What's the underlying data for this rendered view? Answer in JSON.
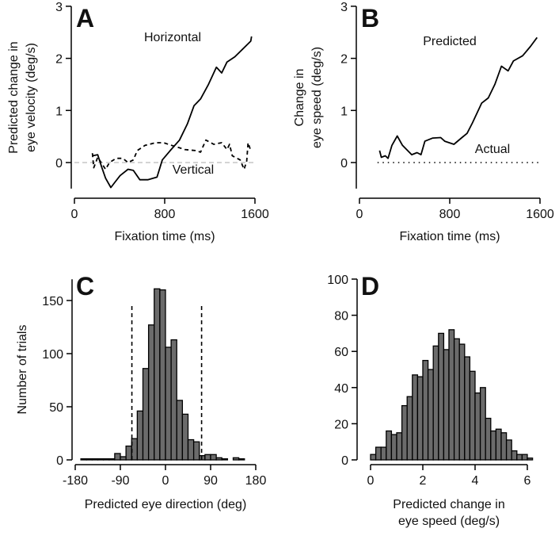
{
  "colors": {
    "bar_fill": "#6b6b6b",
    "line": "#000000",
    "zero_line": "#bbbbbb"
  },
  "chart_data": [
    {
      "panel": "A",
      "type": "line",
      "xlabel": "Fixation time (ms)",
      "ylabel": [
        "Predicted change in",
        "eye velocity (deg/s)"
      ],
      "xlim": [
        0,
        1600
      ],
      "ylim": [
        -0.5,
        3
      ],
      "xticks": [
        "0",
        "800",
        "1600"
      ],
      "yticks": [
        "0",
        "1",
        "2",
        "3"
      ],
      "zero_line": true,
      "series": [
        {
          "name": "Horizontal",
          "style": "solid",
          "x": [
            159,
            206,
            241,
            276,
            323,
            358,
            405,
            475,
            522,
            580,
            650,
            732,
            779,
            849,
            931,
            1001,
            1060,
            1118,
            1188,
            1258,
            1305,
            1352,
            1422,
            1492,
            1563,
            1570
          ],
          "y": [
            0.13,
            0.15,
            -0.08,
            -0.3,
            -0.48,
            -0.38,
            -0.25,
            -0.13,
            -0.15,
            -0.33,
            -0.33,
            -0.28,
            0.05,
            0.23,
            0.43,
            0.74,
            1.09,
            1.22,
            1.5,
            1.83,
            1.72,
            1.93,
            2.03,
            2.18,
            2.33,
            2.42
          ]
        },
        {
          "name": "Vertical",
          "style": "dashed",
          "x": [
            159,
            171,
            206,
            276,
            311,
            370,
            428,
            475,
            522,
            557,
            627,
            720,
            791,
            861,
            908,
            978,
            1072,
            1118,
            1165,
            1235,
            1305,
            1352,
            1375,
            1399,
            1469,
            1504,
            1527,
            1539,
            1563
          ],
          "y": [
            0.18,
            -0.1,
            0.1,
            -0.13,
            0,
            0.08,
            0.08,
            0,
            0.05,
            0.23,
            0.33,
            0.38,
            0.38,
            0.33,
            0.3,
            0.25,
            0.23,
            0.2,
            0.43,
            0.35,
            0.38,
            0.25,
            0.35,
            0.13,
            0.05,
            -0.13,
            0.03,
            0.38,
            0.23
          ]
        }
      ]
    },
    {
      "panel": "B",
      "type": "line",
      "xlabel": "Fixation time (ms)",
      "ylabel": [
        "Change in",
        "eye speed  (deg/s)"
      ],
      "xlim": [
        0,
        1600
      ],
      "ylim": [
        -0.5,
        3
      ],
      "xticks": [
        "0",
        "800",
        "1600"
      ],
      "yticks": [
        "0",
        "1",
        "2",
        "3"
      ],
      "series": [
        {
          "name": "Predicted",
          "style": "solid",
          "x": [
            178,
            194,
            229,
            253,
            288,
            335,
            381,
            463,
            510,
            545,
            580,
            650,
            720,
            756,
            837,
            908,
            954,
            1001,
            1083,
            1142,
            1200,
            1258,
            1317,
            1364,
            1446,
            1516,
            1574
          ],
          "y": [
            0.23,
            0.1,
            0.13,
            0.08,
            0.33,
            0.51,
            0.33,
            0.15,
            0.19,
            0.15,
            0.41,
            0.47,
            0.48,
            0.41,
            0.35,
            0.48,
            0.56,
            0.76,
            1.14,
            1.24,
            1.5,
            1.85,
            1.76,
            1.95,
            2.05,
            2.23,
            2.4
          ]
        },
        {
          "name": "Actual",
          "style": "dotted",
          "x": [
            160,
            1600
          ],
          "y": [
            0,
            0
          ]
        }
      ]
    },
    {
      "panel": "C",
      "type": "bar",
      "xlabel": "Predicted eye direction (deg)",
      "ylabel": [
        "Number of trials"
      ],
      "xlim": [
        -180,
        180
      ],
      "ylim": [
        0,
        170
      ],
      "xticks": [
        "-180",
        "-90",
        "0",
        "90",
        "180"
      ],
      "yticks": [
        "0",
        "50",
        "100",
        "150"
      ],
      "bin_start": -180,
      "bin_width": 11.25,
      "values": [
        0,
        1,
        1,
        1,
        1,
        1,
        1,
        6,
        3,
        13,
        20,
        46,
        86,
        127,
        161,
        160,
        106,
        113,
        56,
        43,
        19,
        17,
        4,
        5,
        5,
        2,
        1,
        0,
        2,
        1,
        0,
        0
      ],
      "reference_lines": [
        -67,
        72
      ]
    },
    {
      "panel": "D",
      "type": "bar",
      "xlabel": [
        "Predicted change in",
        "eye speed (deg/s)"
      ],
      "ylabel": [],
      "xlim": [
        0,
        6
      ],
      "ylim": [
        0,
        100
      ],
      "xticks": [
        "0",
        "2",
        "4",
        "6"
      ],
      "yticks": [
        "0",
        "20",
        "40",
        "60",
        "80",
        "100"
      ],
      "bin_start": 0,
      "bin_width": 0.2,
      "values": [
        3,
        7,
        7,
        16,
        14,
        15,
        30,
        35,
        47,
        46,
        55,
        50,
        63,
        70,
        61,
        72,
        67,
        64,
        57,
        49,
        37,
        40,
        23,
        16,
        17,
        15,
        11,
        5,
        3,
        3,
        1
      ]
    }
  ]
}
